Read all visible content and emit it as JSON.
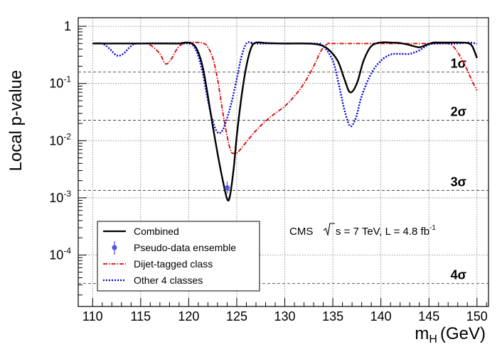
{
  "chart_data": {
    "type": "line",
    "ylabel": "Local p-value",
    "xlabel": "m",
    "xlabel_sub": "H",
    "xlabel_unit": "(GeV)",
    "xlim": [
      108.5,
      151.2
    ],
    "ylim_log10": [
      -4.9,
      0.15
    ],
    "xticks": [
      110,
      115,
      120,
      125,
      130,
      135,
      140,
      145,
      150
    ],
    "x_tick_labels": [
      "110",
      "115",
      "120",
      "125",
      "130",
      "135",
      "140",
      "145",
      "150"
    ],
    "y_ticks": [
      {
        "exp": 0,
        "base": "1",
        "sup": ""
      },
      {
        "exp": -1,
        "base": "10",
        "sup": "-1"
      },
      {
        "exp": -2,
        "base": "10",
        "sup": "-2"
      },
      {
        "exp": -3,
        "base": "10",
        "sup": "-3"
      },
      {
        "exp": -4,
        "base": "10",
        "sup": "-4"
      }
    ],
    "sigma_lines": [
      {
        "label": "1σ",
        "p": 0.1587
      },
      {
        "label": "2σ",
        "p": 0.02275
      },
      {
        "label": "3σ",
        "p": 0.00135
      },
      {
        "label": "4σ",
        "p": 3.17e-05
      }
    ],
    "annotation_cms": "CMS",
    "annotation_energy_pre": "s = 7 TeV, L = 4.8 fb",
    "annotation_energy_sup": "-1",
    "series": [
      {
        "name": "Combined",
        "color": "#000000",
        "style": "solid",
        "points": [
          [
            110,
            0.5
          ],
          [
            111,
            0.5
          ],
          [
            113,
            0.5
          ],
          [
            115,
            0.5
          ],
          [
            117,
            0.5
          ],
          [
            118,
            0.5
          ],
          [
            119,
            0.5
          ],
          [
            119.8,
            0.52
          ],
          [
            120.5,
            0.48
          ],
          [
            121,
            0.35
          ],
          [
            121.5,
            0.18
          ],
          [
            122,
            0.06
          ],
          [
            122.5,
            0.018
          ],
          [
            123,
            0.006
          ],
          [
            123.5,
            0.0022
          ],
          [
            124,
            0.00095
          ],
          [
            124.3,
            0.0011
          ],
          [
            124.7,
            0.0035
          ],
          [
            125,
            0.012
          ],
          [
            125.5,
            0.06
          ],
          [
            126,
            0.2
          ],
          [
            126.5,
            0.42
          ],
          [
            127,
            0.52
          ],
          [
            128,
            0.51
          ],
          [
            130,
            0.5
          ],
          [
            132,
            0.5
          ],
          [
            133.5,
            0.48
          ],
          [
            134.5,
            0.4
          ],
          [
            135.5,
            0.25
          ],
          [
            136.2,
            0.12
          ],
          [
            136.8,
            0.07
          ],
          [
            137.5,
            0.1
          ],
          [
            138.2,
            0.25
          ],
          [
            139,
            0.45
          ],
          [
            140,
            0.52
          ],
          [
            141,
            0.52
          ],
          [
            142,
            0.51
          ],
          [
            143,
            0.47
          ],
          [
            144,
            0.43
          ],
          [
            144.8,
            0.48
          ],
          [
            145.5,
            0.52
          ],
          [
            146,
            0.52
          ],
          [
            148,
            0.52
          ],
          [
            149,
            0.51
          ],
          [
            149.5,
            0.45
          ],
          [
            150,
            0.28
          ]
        ]
      },
      {
        "name": "Pseudo-data ensemble",
        "color": "#5555dd",
        "style": "point",
        "points": [
          [
            124,
            0.0015
          ]
        ],
        "errors": [
          [
            0.00118,
            0.00192
          ]
        ]
      },
      {
        "name": "Dijet-tagged class",
        "color": "#dd0000",
        "style": "dashdot",
        "points": [
          [
            110,
            0.5
          ],
          [
            115,
            0.5
          ],
          [
            116,
            0.47
          ],
          [
            117,
            0.33
          ],
          [
            117.6,
            0.22
          ],
          [
            118.2,
            0.27
          ],
          [
            119,
            0.45
          ],
          [
            120,
            0.52
          ],
          [
            121,
            0.52
          ],
          [
            121.6,
            0.5
          ],
          [
            122,
            0.43
          ],
          [
            122.5,
            0.28
          ],
          [
            123,
            0.12
          ],
          [
            123.5,
            0.035
          ],
          [
            124,
            0.012
          ],
          [
            124.4,
            0.0065
          ],
          [
            124.8,
            0.006
          ],
          [
            125.2,
            0.0065
          ],
          [
            126,
            0.0095
          ],
          [
            127,
            0.015
          ],
          [
            128,
            0.022
          ],
          [
            129,
            0.03
          ],
          [
            130,
            0.04
          ],
          [
            131,
            0.06
          ],
          [
            132,
            0.1
          ],
          [
            133,
            0.2
          ],
          [
            133.8,
            0.38
          ],
          [
            134.5,
            0.5
          ],
          [
            135,
            0.5
          ],
          [
            140,
            0.5
          ],
          [
            145,
            0.5
          ],
          [
            147,
            0.5
          ],
          [
            147.5,
            0.45
          ],
          [
            148,
            0.35
          ],
          [
            148.5,
            0.25
          ],
          [
            149,
            0.17
          ],
          [
            149.5,
            0.11
          ],
          [
            150,
            0.075
          ]
        ]
      },
      {
        "name": "Other 4 classes",
        "color": "#0000dd",
        "style": "dotted",
        "points": [
          [
            110,
            0.5
          ],
          [
            111,
            0.5
          ],
          [
            111.8,
            0.4
          ],
          [
            112.5,
            0.31
          ],
          [
            113.2,
            0.33
          ],
          [
            114,
            0.45
          ],
          [
            115,
            0.5
          ],
          [
            120,
            0.5
          ],
          [
            120.5,
            0.45
          ],
          [
            121,
            0.3
          ],
          [
            121.5,
            0.14
          ],
          [
            122,
            0.05
          ],
          [
            122.5,
            0.022
          ],
          [
            123,
            0.014
          ],
          [
            123.5,
            0.015
          ],
          [
            124,
            0.025
          ],
          [
            124.5,
            0.05
          ],
          [
            125,
            0.12
          ],
          [
            125.5,
            0.3
          ],
          [
            126,
            0.5
          ],
          [
            126.5,
            0.52
          ],
          [
            127,
            0.5
          ],
          [
            133,
            0.5
          ],
          [
            134,
            0.45
          ],
          [
            135,
            0.25
          ],
          [
            135.6,
            0.1
          ],
          [
            136.2,
            0.035
          ],
          [
            136.8,
            0.018
          ],
          [
            137.4,
            0.025
          ],
          [
            138,
            0.06
          ],
          [
            139,
            0.15
          ],
          [
            140,
            0.25
          ],
          [
            141,
            0.32
          ],
          [
            142,
            0.33
          ],
          [
            143,
            0.33
          ],
          [
            144,
            0.38
          ],
          [
            145,
            0.48
          ],
          [
            146,
            0.5
          ],
          [
            148,
            0.5
          ],
          [
            149,
            0.52
          ],
          [
            150,
            0.5
          ]
        ]
      }
    ]
  }
}
